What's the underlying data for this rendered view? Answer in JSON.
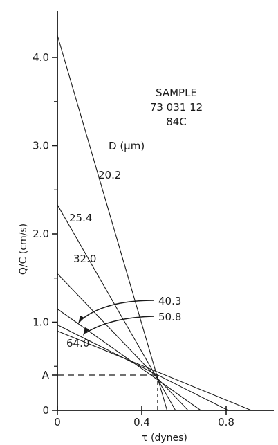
{
  "chart_data": {
    "type": "line",
    "xlabel": "τ (dynes)",
    "ylabel": "Q/C  (cm/s)",
    "xlim": [
      0,
      1.0
    ],
    "ylim": [
      0,
      4.4
    ],
    "x_ticks": [
      0,
      0.4,
      0.8
    ],
    "x_tick_labels": [
      "0",
      "0.4",
      "0.8"
    ],
    "y_ticks": [
      0,
      1.0,
      2.0,
      3.0,
      4.0
    ],
    "y_tick_labels": [
      "0",
      "1.0",
      "2.0",
      "3.0",
      "4.0"
    ],
    "y_minor_ticks": [
      0.5,
      1.5,
      2.5,
      3.5
    ],
    "extra_y_tick": {
      "value": 0.4,
      "label": "A"
    },
    "legend_title": "D (μm)",
    "annotation_lines": [
      "SAMPLE",
      "73 031 12",
      "84C"
    ],
    "convergence_point": {
      "x": 0.475,
      "y": 0.4
    },
    "series": [
      {
        "name": "20.2",
        "y_intercept": 4.25,
        "x_intercept": 0.52
      },
      {
        "name": "25.4",
        "y_intercept": 2.33,
        "x_intercept": 0.56
      },
      {
        "name": "32.0",
        "y_intercept": 1.55,
        "x_intercept": 0.62
      },
      {
        "name": "40.3",
        "y_intercept": 1.15,
        "x_intercept": 0.68
      },
      {
        "name": "50.8",
        "y_intercept": 0.97,
        "x_intercept": 0.81
      },
      {
        "name": "64.0",
        "y_intercept": 0.9,
        "x_intercept": 0.92
      }
    ]
  }
}
